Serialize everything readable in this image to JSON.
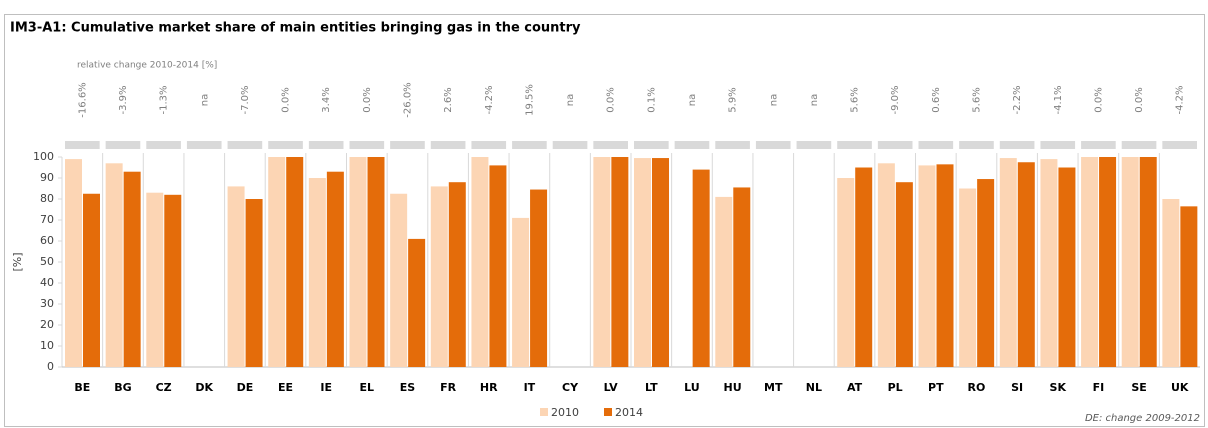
{
  "chart_data": {
    "type": "bar",
    "title": "IM3-A1: Cumulative market share of main entities bringing gas in the country",
    "subtitle": "relative change 2010-2014 [%]",
    "y_label": "[%]",
    "note": "DE: change 2009-2012",
    "categories": [
      "BE",
      "BG",
      "CZ",
      "DK",
      "DE",
      "EE",
      "IE",
      "EL",
      "ES",
      "FR",
      "HR",
      "IT",
      "CY",
      "LV",
      "LT",
      "LU",
      "HU",
      "MT",
      "NL",
      "AT",
      "PL",
      "PT",
      "RO",
      "SI",
      "SK",
      "FI",
      "SE",
      "UK"
    ],
    "change_labels": [
      "-16.6%",
      "-3.9%",
      "-1.3%",
      "na",
      "-7.0%",
      "0.0%",
      "3.4%",
      "0.0%",
      "-26.0%",
      "2.6%",
      "-4.2%",
      "19.5%",
      "na",
      "0.0%",
      "0.1%",
      "na",
      "5.9%",
      "na",
      "na",
      "5.6%",
      "-9.0%",
      "0.6%",
      "5.6%",
      "-2.2%",
      "-4.1%",
      "0.0%",
      "0.0%",
      "-4.2%"
    ],
    "series": [
      {
        "name": "2010",
        "color": "#fcd5b4",
        "values": [
          99,
          97,
          83,
          null,
          86,
          100,
          90,
          100,
          82.5,
          86,
          100,
          71,
          null,
          100,
          99.5,
          null,
          81,
          null,
          null,
          90,
          97,
          96,
          85,
          99.5,
          99,
          100,
          100,
          80
        ]
      },
      {
        "name": "2014",
        "color": "#e46c0a",
        "values": [
          82.5,
          93,
          82,
          null,
          80,
          100,
          93,
          100,
          61,
          88,
          96,
          84.5,
          null,
          100,
          99.5,
          94,
          85.5,
          null,
          null,
          95,
          88,
          96.5,
          89.5,
          97.5,
          95,
          100,
          100,
          76.5
        ]
      }
    ],
    "ylim": [
      0,
      100
    ],
    "yticks": [
      0,
      10,
      20,
      30,
      40,
      50,
      60,
      70,
      80,
      90,
      100
    ]
  }
}
